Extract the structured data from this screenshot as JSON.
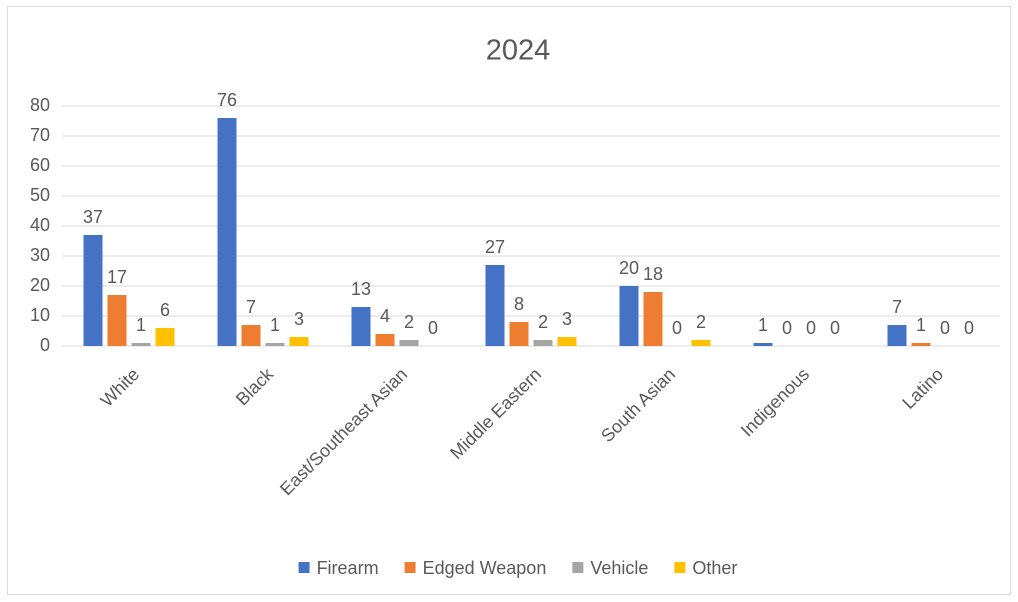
{
  "chart_data": {
    "type": "bar",
    "title": "2024",
    "categories": [
      "White",
      "Black",
      "East/Southeast Asian",
      "Middle Eastern",
      "South Asian",
      "Indigenous",
      "Latino"
    ],
    "series": [
      {
        "name": "Firearm",
        "color": "#4472c4",
        "values": [
          37,
          76,
          13,
          27,
          20,
          1,
          7
        ]
      },
      {
        "name": "Edged Weapon",
        "color": "#ed7d31",
        "values": [
          17,
          7,
          4,
          8,
          18,
          0,
          1
        ]
      },
      {
        "name": "Vehicle",
        "color": "#a5a5a5",
        "values": [
          1,
          1,
          2,
          2,
          0,
          0,
          0
        ]
      },
      {
        "name": "Other",
        "color": "#ffc000",
        "values": [
          6,
          3,
          0,
          3,
          2,
          0,
          0
        ]
      }
    ],
    "ylim": [
      0,
      80
    ],
    "yticks": [
      0,
      10,
      20,
      30,
      40,
      50,
      60,
      70,
      80
    ],
    "grid": true,
    "legend": "bottom",
    "data_labels": true
  }
}
